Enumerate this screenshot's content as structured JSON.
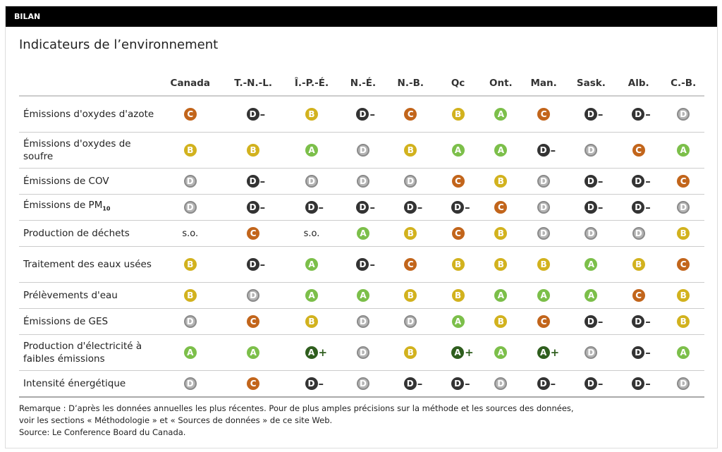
{
  "header": {
    "bar_label": "BILAN",
    "title": "Indicateurs de l’environnement"
  },
  "colors": {
    "A+": "#2f5e1e",
    "A": "#7cbf4a",
    "B": "#d2b21e",
    "C": "#c2651b",
    "D": "#a0a0a0",
    "D-": "#333333"
  },
  "columns": [
    "Canada",
    "T.-N.-L.",
    "Î.-P.-É.",
    "N.-É.",
    "N.-B.",
    "Qc",
    "Ont.",
    "Man.",
    "Sask.",
    "Alb.",
    "C.-B."
  ],
  "rows": [
    {
      "label": "Émissions d'oxydes d'azote",
      "grades": [
        "C",
        "D-",
        "B",
        "D-",
        "C",
        "B",
        "A",
        "C",
        "D-",
        "D-",
        "D"
      ]
    },
    {
      "label": "Émissions d'oxydes de soufre",
      "grades": [
        "B",
        "B",
        "A",
        "D",
        "B",
        "A",
        "A",
        "D-",
        "D",
        "C",
        "A"
      ]
    },
    {
      "label": "Émissions de COV",
      "grades": [
        "D",
        "D-",
        "D",
        "D",
        "D",
        "C",
        "B",
        "D",
        "D-",
        "D-",
        "C"
      ]
    },
    {
      "label": "Émissions de PM",
      "label_sub": "10",
      "grades": [
        "D",
        "D-",
        "D-",
        "D-",
        "D-",
        "D-",
        "C",
        "D",
        "D-",
        "D-",
        "D"
      ]
    },
    {
      "label": "Production de déchets",
      "grades": [
        "s.o.",
        "C",
        "s.o.",
        "A",
        "B",
        "C",
        "B",
        "D",
        "D",
        "D",
        "B"
      ]
    },
    {
      "label": "Traitement des eaux usées",
      "grades": [
        "B",
        "D-",
        "A",
        "D-",
        "C",
        "B",
        "B",
        "B",
        "A",
        "B",
        "C"
      ]
    },
    {
      "label": "Prélèvements d'eau",
      "grades": [
        "B",
        "D",
        "A",
        "A",
        "B",
        "B",
        "A",
        "A",
        "A",
        "C",
        "B"
      ]
    },
    {
      "label": "Émissions de GES",
      "grades": [
        "D",
        "C",
        "B",
        "D",
        "D",
        "A",
        "B",
        "C",
        "D-",
        "D-",
        "B"
      ]
    },
    {
      "label": "Production d'électricité à faibles émissions",
      "grades": [
        "A",
        "A",
        "A+",
        "D",
        "B",
        "A+",
        "A",
        "A+",
        "D",
        "D-",
        "A"
      ]
    },
    {
      "label": "Intensité énergétique",
      "grades": [
        "D",
        "C",
        "D-",
        "D",
        "D-",
        "D-",
        "D",
        "D-",
        "D-",
        "D-",
        "D"
      ]
    }
  ],
  "note": {
    "line1": "Remarque : D’après les données annuelles les plus récentes. Pour de plus amples précisions sur la méthode et les sources des données,",
    "line2": "voir les sections « Méthodologie » et « Sources de données » de ce site Web.",
    "source": "Source: Le Conference Board du Canada."
  }
}
